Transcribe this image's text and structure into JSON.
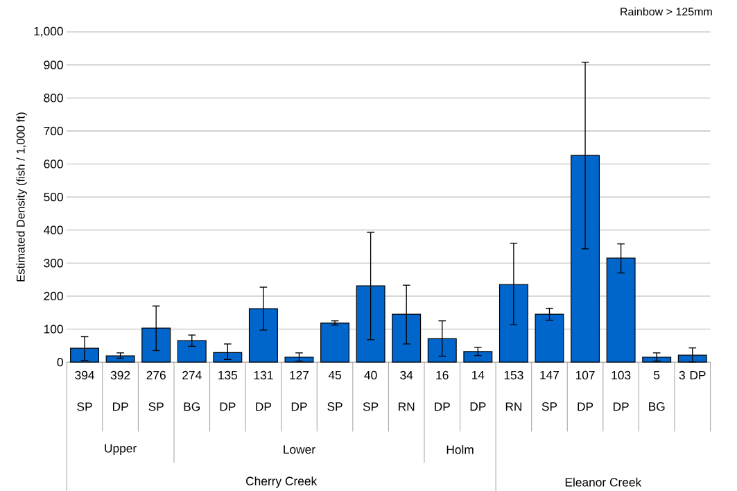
{
  "chart_data": {
    "type": "bar",
    "ylabel": "Estimated Density (fish / 1,000 ft)",
    "categories": [
      "394 SP",
      "392 DP",
      "276 SP",
      "274 BG",
      "135 DP",
      "131 DP",
      "127 DP",
      "45 SP",
      "40 SP",
      "34 RN",
      "16 DP",
      "14 DP",
      "153 RN",
      "147 SP",
      "107 DP",
      "103 DP",
      "5 BG",
      "3 DP"
    ],
    "values": [
      42,
      19,
      103,
      65,
      29,
      162,
      15,
      118,
      231,
      145,
      71,
      32,
      235,
      145,
      626,
      315,
      15,
      21
    ],
    "errors": [
      [
        5,
        77
      ],
      [
        12,
        28
      ],
      [
        35,
        170
      ],
      [
        48,
        82
      ],
      [
        8,
        55
      ],
      [
        97,
        227
      ],
      [
        3,
        28
      ],
      [
        112,
        125
      ],
      [
        68,
        393
      ],
      [
        55,
        233
      ],
      [
        18,
        125
      ],
      [
        20,
        45
      ],
      [
        113,
        360
      ],
      [
        127,
        163
      ],
      [
        343,
        908
      ],
      [
        270,
        358
      ],
      [
        3,
        28
      ],
      [
        0,
        43
      ]
    ],
    "color": "#0066cc",
    "ylim": [
      0,
      1000
    ],
    "yticks": [
      0,
      100,
      200,
      300,
      400,
      500,
      600,
      700,
      800,
      900,
      {
        "value": 1000,
        "label": "1,000"
      }
    ],
    "grid": "y",
    "annotations": [
      "Rainbow > 125mm",
      "Upper",
      "Lower",
      "Holm",
      "Cherry Creek",
      "Eleanor Creek"
    ]
  }
}
